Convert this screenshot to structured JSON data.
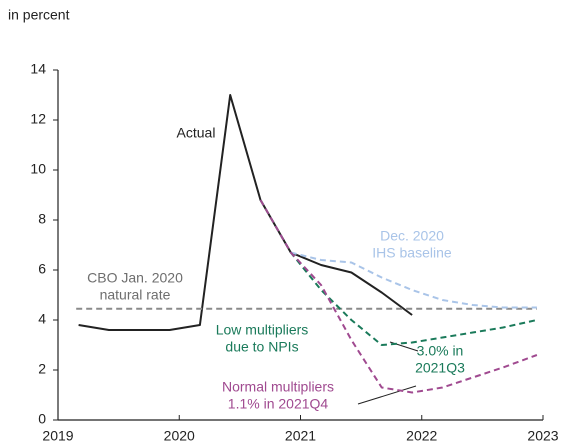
{
  "chart_data": {
    "type": "line",
    "axis_label": "in percent",
    "xlim": [
      2019,
      2023
    ],
    "xticks": [
      2019,
      2020,
      2021,
      2022,
      2023
    ],
    "ylim": [
      0,
      14
    ],
    "yticks": [
      0,
      2,
      4,
      6,
      8,
      10,
      12,
      14
    ],
    "series": [
      {
        "name": "Actual",
        "color": "#222222",
        "dash": false,
        "x": [
          2019.17,
          2019.42,
          2019.67,
          2019.92,
          2020.17,
          2020.42,
          2020.67,
          2020.92,
          2021.17,
          2021.42,
          2021.67,
          2021.92
        ],
        "values": [
          3.8,
          3.6,
          3.6,
          3.6,
          3.8,
          13.0,
          8.8,
          6.7,
          6.2,
          5.9,
          5.1,
          4.2
        ]
      },
      {
        "name": "CBO Jan. 2020 natural rate",
        "color": "#8a8a8a",
        "dash": true,
        "x": [
          2019.15,
          2022.95
        ],
        "values": [
          4.45,
          4.45
        ]
      },
      {
        "name": "Dec. 2020 IHS baseline",
        "color": "#a9c4e8",
        "dash": true,
        "x": [
          2020.92,
          2021.17,
          2021.42,
          2021.67,
          2021.92,
          2022.17,
          2022.42,
          2022.67,
          2022.95
        ],
        "values": [
          6.7,
          6.4,
          6.3,
          5.7,
          5.2,
          4.8,
          4.6,
          4.5,
          4.5
        ]
      },
      {
        "name": "Low multipliers due to NPIs",
        "color": "#1a7a5a",
        "dash": true,
        "x": [
          2020.67,
          2020.92,
          2021.17,
          2021.42,
          2021.67,
          2021.92,
          2022.17,
          2022.42,
          2022.67,
          2022.95
        ],
        "values": [
          8.8,
          6.7,
          5.2,
          4.0,
          3.0,
          3.1,
          3.3,
          3.5,
          3.7,
          4.0
        ]
      },
      {
        "name": "Normal multipliers",
        "color": "#a04a90",
        "dash": true,
        "x": [
          2020.67,
          2020.92,
          2021.17,
          2021.42,
          2021.67,
          2021.92,
          2022.17,
          2022.42,
          2022.67,
          2022.95
        ],
        "values": [
          8.8,
          6.7,
          5.4,
          3.2,
          1.3,
          1.1,
          1.3,
          1.7,
          2.1,
          2.6
        ]
      }
    ],
    "annotations": [
      {
        "text": [
          "Actual"
        ],
        "color": "#222222"
      },
      {
        "text": [
          "CBO Jan. 2020",
          "natural rate"
        ],
        "color": "#6e6e6e"
      },
      {
        "text": [
          "Dec. 2020",
          "IHS baseline"
        ],
        "color": "#a9c4e8"
      },
      {
        "text": [
          "Low multipliers",
          "due to NPIs"
        ],
        "color": "#1a7a5a"
      },
      {
        "text": [
          "3.0% in",
          "2021Q3"
        ],
        "color": "#1a7a5a"
      },
      {
        "text": [
          "Normal multipliers",
          "1.1% in 2021Q4"
        ],
        "color": "#a04a90"
      }
    ]
  }
}
